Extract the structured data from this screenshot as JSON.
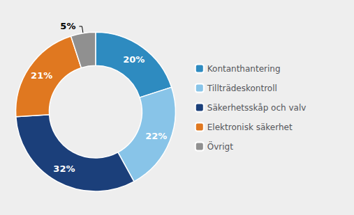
{
  "chart_data": {
    "type": "pie",
    "categories": [
      "Kontanthantering",
      "Tillträdeskontroll",
      "Säkerhetsskåp och valv",
      "Elektronisk säkerhet",
      "Övrigt"
    ],
    "values": [
      20,
      22,
      32,
      21,
      5
    ],
    "value_labels": [
      "20%",
      "22%",
      "32%",
      "21%",
      "5%"
    ],
    "colors": [
      "#2E8BC0",
      "#88C4E8",
      "#1B3F7A",
      "#E07820",
      "#909090"
    ],
    "data_labels": true,
    "legend": "right"
  }
}
